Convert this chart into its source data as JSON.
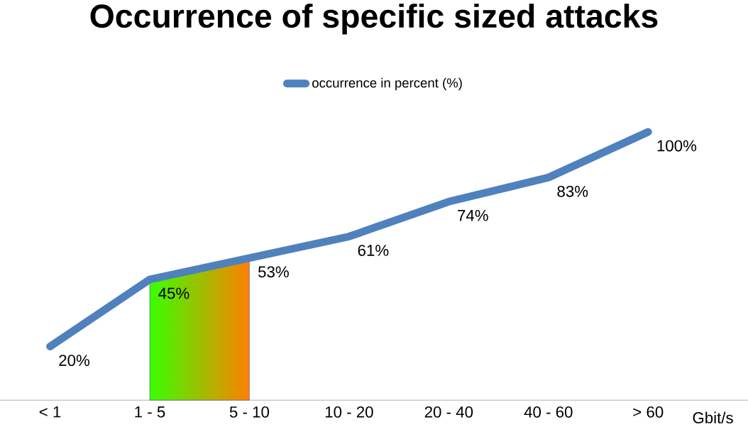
{
  "chart_data": {
    "type": "line",
    "title": "Occurrence of specific sized attacks",
    "xlabel": "Gbit/s",
    "categories": [
      "< 1",
      "1 - 5",
      "5 - 10",
      "10 - 20",
      "20 - 40",
      "40 - 60",
      "> 60"
    ],
    "series": [
      {
        "name": "occurrence in percent (%)",
        "color": "#4f81bd",
        "values": [
          20,
          45,
          53,
          61,
          74,
          83,
          100
        ],
        "value_labels": [
          "20%",
          "45%",
          "53%",
          "61%",
          "74%",
          "83%",
          "100%"
        ]
      }
    ],
    "bands": [
      {
        "axis": "x",
        "from": "1 - 5",
        "to": "5 - 10",
        "color": "#ff8000"
      }
    ],
    "legend": "top",
    "marker": "none",
    "line_style": "solid",
    "grid": false
  }
}
